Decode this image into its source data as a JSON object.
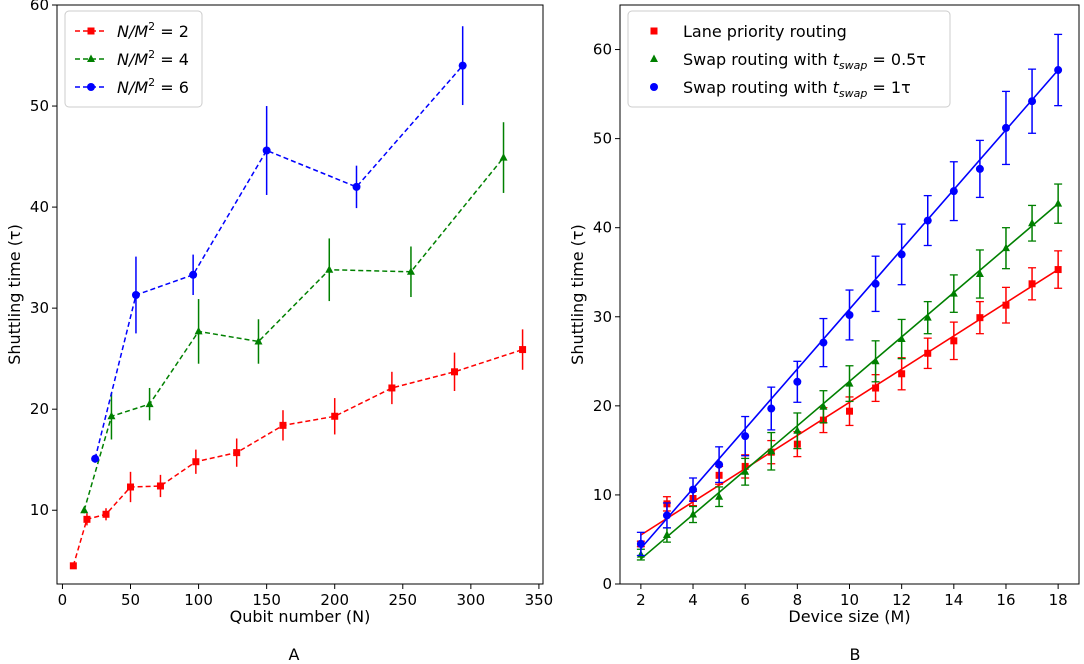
{
  "chart_data": [
    {
      "type": "line",
      "panel_label": "A",
      "xlabel": "Qubit number (N)",
      "ylabel": "Shuttling time (τ)",
      "xlim": [
        -4,
        353
      ],
      "ylim": [
        2.7,
        60
      ],
      "xticks": [
        0,
        50,
        100,
        150,
        200,
        250,
        300,
        350
      ],
      "xtick_labels": [
        "0",
        "50",
        "100",
        "150",
        "200",
        "250",
        "300",
        "350"
      ],
      "yticks": [
        10,
        20,
        30,
        40,
        50,
        60
      ],
      "ytick_labels": [
        "10",
        "20",
        "30",
        "40",
        "50",
        "60"
      ],
      "grid": false,
      "legend_position": "top-left",
      "series": [
        {
          "name_parts": [
            "N/M",
            "2",
            " = 2"
          ],
          "color": "#ff0000",
          "marker": "square",
          "line_style": "dashed",
          "x": [
            8,
            18,
            32,
            50,
            72,
            98,
            128,
            162,
            200,
            242,
            288,
            338
          ],
          "y": [
            4.5,
            9.1,
            9.6,
            12.3,
            12.4,
            14.8,
            15.7,
            18.4,
            19.3,
            22.1,
            23.7,
            25.9
          ],
          "err": [
            0.3,
            0.6,
            0.6,
            1.5,
            1.1,
            1.2,
            1.4,
            1.5,
            1.8,
            1.6,
            1.9,
            2.0
          ]
        },
        {
          "name_parts": [
            "N/M",
            "2",
            " = 4"
          ],
          "color": "#008000",
          "marker": "triangle",
          "line_style": "dashed",
          "x": [
            16,
            36,
            64,
            100,
            144,
            196,
            256,
            324
          ],
          "y": [
            10.0,
            19.3,
            20.5,
            27.7,
            26.7,
            33.8,
            33.6,
            44.9
          ],
          "err": [
            0.3,
            2.3,
            1.6,
            3.2,
            2.2,
            3.1,
            2.5,
            3.5
          ]
        },
        {
          "name_parts": [
            "N/M",
            "2",
            " = 6"
          ],
          "color": "#0000ff",
          "marker": "circle",
          "line_style": "dashed",
          "x": [
            24,
            54,
            96,
            150,
            216,
            294
          ],
          "y": [
            15.1,
            31.3,
            33.3,
            45.6,
            42.0,
            54.0
          ],
          "err": [
            0.4,
            3.8,
            2.0,
            4.4,
            2.1,
            3.9
          ]
        }
      ]
    },
    {
      "type": "line",
      "panel_label": "B",
      "xlabel": "Device size (M)",
      "ylabel": "Shuttling time (τ)",
      "xlim": [
        1.2,
        18.8
      ],
      "ylim": [
        0,
        65
      ],
      "xticks": [
        2,
        4,
        6,
        8,
        10,
        12,
        14,
        16,
        18
      ],
      "xtick_labels": [
        "2",
        "4",
        "6",
        "8",
        "10",
        "12",
        "14",
        "16",
        "18"
      ],
      "yticks": [
        0,
        10,
        20,
        30,
        40,
        50,
        60
      ],
      "ytick_labels": [
        "0",
        "10",
        "20",
        "30",
        "40",
        "50",
        "60"
      ],
      "grid": false,
      "legend_position": "top-left",
      "x": [
        2,
        3,
        4,
        5,
        6,
        7,
        8,
        9,
        10,
        11,
        12,
        13,
        14,
        15,
        16,
        17,
        18
      ],
      "series": [
        {
          "name": "Lane priority routing",
          "color": "#ff0000",
          "marker": "square",
          "line_style": "solid",
          "y": [
            4.5,
            9.0,
            9.6,
            12.2,
            13.2,
            14.8,
            15.7,
            18.4,
            19.4,
            22.0,
            23.6,
            25.9,
            27.3,
            29.9,
            31.3,
            33.7,
            35.3
          ],
          "err": [
            0.3,
            0.8,
            0.8,
            1.0,
            1.3,
            1.3,
            1.4,
            1.4,
            1.6,
            1.5,
            1.8,
            1.7,
            2.1,
            1.8,
            2.0,
            1.8,
            2.1
          ],
          "fit": [
            5.5,
            35.3
          ]
        },
        {
          "name_parts": [
            "Swap routing with ",
            "t",
            "swap",
            " = 0.5τ"
          ],
          "color": "#008000",
          "marker": "triangle",
          "line_style": "solid",
          "y": [
            3.3,
            5.5,
            7.8,
            9.8,
            12.6,
            14.9,
            17.2,
            19.9,
            22.5,
            25.0,
            27.5,
            29.9,
            32.6,
            34.8,
            37.7,
            40.5,
            42.7
          ],
          "err": [
            0.6,
            0.8,
            0.9,
            1.1,
            1.5,
            2.1,
            2.0,
            1.8,
            2.0,
            2.3,
            2.2,
            1.8,
            2.1,
            2.7,
            2.3,
            2.0,
            2.2
          ],
          "fit": [
            2.8,
            42.7
          ]
        },
        {
          "name_parts": [
            "Swap routing with ",
            "t",
            "swap",
            " = 1τ"
          ],
          "color": "#0000ff",
          "marker": "circle",
          "line_style": "solid",
          "y": [
            4.5,
            7.7,
            10.6,
            13.4,
            16.6,
            19.7,
            22.7,
            27.1,
            30.2,
            33.7,
            37.0,
            40.8,
            44.1,
            46.6,
            51.2,
            54.2,
            57.7
          ],
          "err": [
            1.3,
            1.4,
            1.3,
            2.0,
            2.2,
            2.4,
            2.3,
            2.7,
            2.8,
            3.1,
            3.4,
            2.8,
            3.3,
            3.2,
            4.1,
            3.6,
            4.0
          ],
          "fit": [
            4.0,
            57.7
          ]
        }
      ]
    }
  ]
}
